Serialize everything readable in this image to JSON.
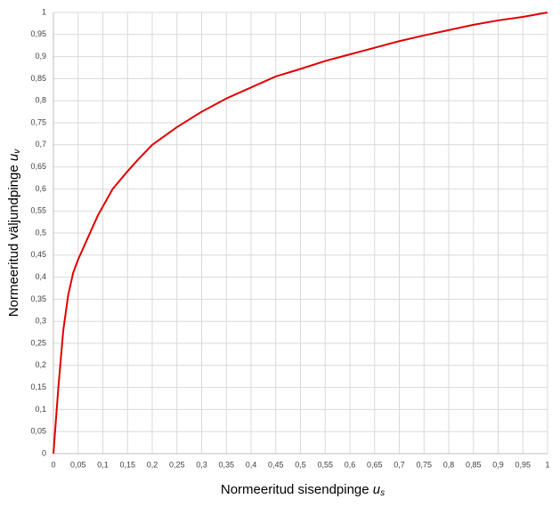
{
  "chart_data": {
    "type": "line",
    "x_label": {
      "text": "Normeeritud sisendpinge",
      "var": "u",
      "sub": "s"
    },
    "y_label": {
      "text": "Normeeritud väljundpinge",
      "var": "u",
      "sub": "v"
    },
    "x": [
      0,
      0.01,
      0.02,
      0.03,
      0.04,
      0.05,
      0.07,
      0.08,
      0.09,
      0.1,
      0.12,
      0.15,
      0.17,
      0.2,
      0.25,
      0.3,
      0.35,
      0.4,
      0.45,
      0.5,
      0.55,
      0.6,
      0.65,
      0.7,
      0.75,
      0.8,
      0.85,
      0.9,
      0.95,
      1
    ],
    "series": [
      {
        "color": "#e00000",
        "values": [
          0,
          0.15,
          0.28,
          0.36,
          0.41,
          0.44,
          0.49,
          0.515,
          0.54,
          0.56,
          0.6,
          0.64,
          0.665,
          0.7,
          0.74,
          0.775,
          0.805,
          0.83,
          0.855,
          0.872,
          0.89,
          0.905,
          0.92,
          0.935,
          0.948,
          0.96,
          0.972,
          0.982,
          0.99,
          1
        ]
      }
    ],
    "xlim": [
      0,
      1
    ],
    "ylim": [
      0,
      1
    ],
    "xticks": [
      0,
      {
        "value": 0.05,
        "label": "0,05"
      },
      {
        "value": 0.1,
        "label": "0,1"
      },
      {
        "value": 0.15,
        "label": "0,15"
      },
      {
        "value": 0.2,
        "label": "0,2"
      },
      {
        "value": 0.25,
        "label": "0,25"
      },
      {
        "value": 0.3,
        "label": "0,3"
      },
      {
        "value": 0.35,
        "label": "0,35"
      },
      {
        "value": 0.4,
        "label": "0,4"
      },
      {
        "value": 0.45,
        "label": "0,45"
      },
      {
        "value": 0.5,
        "label": "0,5"
      },
      {
        "value": 0.55,
        "label": "0,55"
      },
      {
        "value": 0.6,
        "label": "0,6"
      },
      {
        "value": 0.65,
        "label": "0,65"
      },
      {
        "value": 0.7,
        "label": "0,7"
      },
      {
        "value": 0.75,
        "label": "0,75"
      },
      {
        "value": 0.8,
        "label": "0,8"
      },
      {
        "value": 0.85,
        "label": "0,85"
      },
      {
        "value": 0.9,
        "label": "0,9"
      },
      {
        "value": 0.95,
        "label": "0,95"
      },
      1
    ],
    "yticks": [
      0,
      {
        "value": 0.05,
        "label": "0,05"
      },
      {
        "value": 0.1,
        "label": "0,1"
      },
      {
        "value": 0.15,
        "label": "0,15"
      },
      {
        "value": 0.2,
        "label": "0,2"
      },
      {
        "value": 0.25,
        "label": "0,25"
      },
      {
        "value": 0.3,
        "label": "0,3"
      },
      {
        "value": 0.35,
        "label": "0,35"
      },
      {
        "value": 0.4,
        "label": "0,4"
      },
      {
        "value": 0.45,
        "label": "0,45"
      },
      {
        "value": 0.5,
        "label": "0,5"
      },
      {
        "value": 0.55,
        "label": "0,55"
      },
      {
        "value": 0.6,
        "label": "0,6"
      },
      {
        "value": 0.65,
        "label": "0,65"
      },
      {
        "value": 0.7,
        "label": "0,7"
      },
      {
        "value": 0.75,
        "label": "0,75"
      },
      {
        "value": 0.8,
        "label": "0,8"
      },
      {
        "value": 0.85,
        "label": "0,85"
      },
      {
        "value": 0.9,
        "label": "0,9"
      },
      {
        "value": 0.95,
        "label": "0,95"
      },
      1
    ],
    "grid": true
  }
}
